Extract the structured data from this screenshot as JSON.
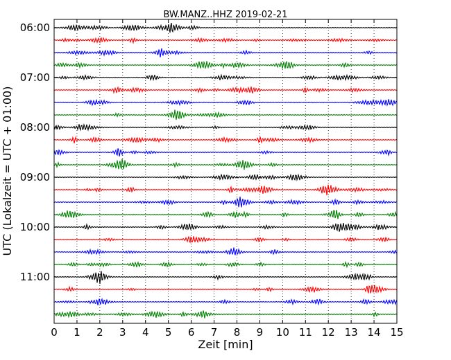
{
  "chart_data": {
    "type": "line",
    "title": "BW.MANZ..HHZ 2019-02-21",
    "xlabel": "Zeit  [min]",
    "ylabel": "UTC (Lokalzeit = UTC + 01:00)",
    "xlim": [
      0,
      15
    ],
    "x_ticks": [
      "0",
      "1",
      "2",
      "3",
      "4",
      "5",
      "6",
      "7",
      "8",
      "9",
      "10",
      "11",
      "12",
      "13",
      "14",
      "15"
    ],
    "y_ticks": [
      "06:00",
      "07:00",
      "08:00",
      "09:00",
      "10:00",
      "11:00"
    ],
    "grid": "vertical dotted",
    "trace_colors": [
      "#000000",
      "#ff0000",
      "#0000ff",
      "#008000"
    ],
    "row_interval_min": 15,
    "start_time": "06:00",
    "row_count": 24
  }
}
